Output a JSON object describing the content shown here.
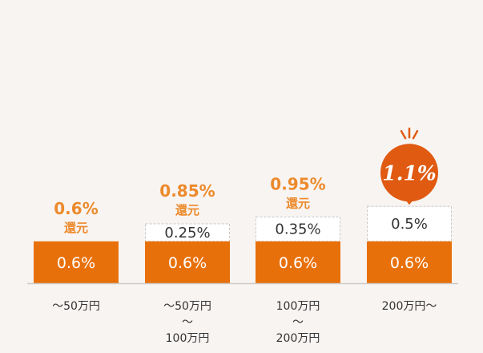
{
  "chart_data": {
    "type": "bar",
    "stacked": true,
    "categories": [
      [
        "～50万円"
      ],
      [
        "～50万円",
        "～",
        "100万円"
      ],
      [
        "100万円",
        "～",
        "200万円"
      ],
      [
        "200万円～"
      ]
    ],
    "series": [
      {
        "values": [
          0.6,
          0.6,
          0.6,
          0.6
        ],
        "labels": [
          "0.6%",
          "0.6%",
          "0.6%",
          "0.6%"
        ]
      },
      {
        "values": [
          0,
          0.25,
          0.35,
          0.5
        ],
        "labels": [
          "",
          "0.25%",
          "0.35%",
          "0.5%"
        ]
      }
    ],
    "totals": [
      {
        "value": "0.6%",
        "suffix": "還元"
      },
      {
        "value": "0.85%",
        "suffix": "還元"
      },
      {
        "value": "0.95%",
        "suffix": "還元"
      },
      {
        "value": "1.1%",
        "suffix": ""
      }
    ],
    "colors": {
      "base": "#e8700a",
      "bonus_fill": "#ffffff",
      "bonus_border": "#c8c8c8",
      "total_text": "#ec8a2c",
      "highlight": "#e05a12",
      "axis": "#cfcac6",
      "text": "#333333"
    }
  }
}
